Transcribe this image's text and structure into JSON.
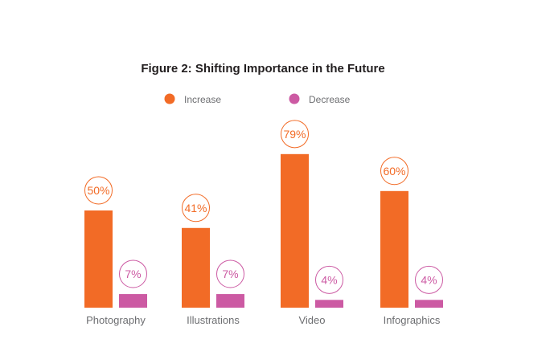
{
  "chart_data": {
    "type": "bar",
    "title": "Figure 2: Shifting Importance in the Future",
    "categories": [
      "Photography",
      "Illustrations",
      "Video",
      "Infographics"
    ],
    "series": [
      {
        "name": "Increase",
        "color": "#f26b26",
        "values": [
          50,
          41,
          79,
          60
        ],
        "labels": [
          "50%",
          "41%",
          "79%",
          "60%"
        ]
      },
      {
        "name": "Decrease",
        "color": "#cc5aa3",
        "values": [
          7,
          7,
          4,
          4
        ],
        "labels": [
          "7%",
          "7%",
          "4%",
          "4%"
        ]
      }
    ],
    "legend": "top-center",
    "xlabel": "",
    "ylabel": "",
    "ylim": [
      0,
      100
    ],
    "grid": false
  }
}
